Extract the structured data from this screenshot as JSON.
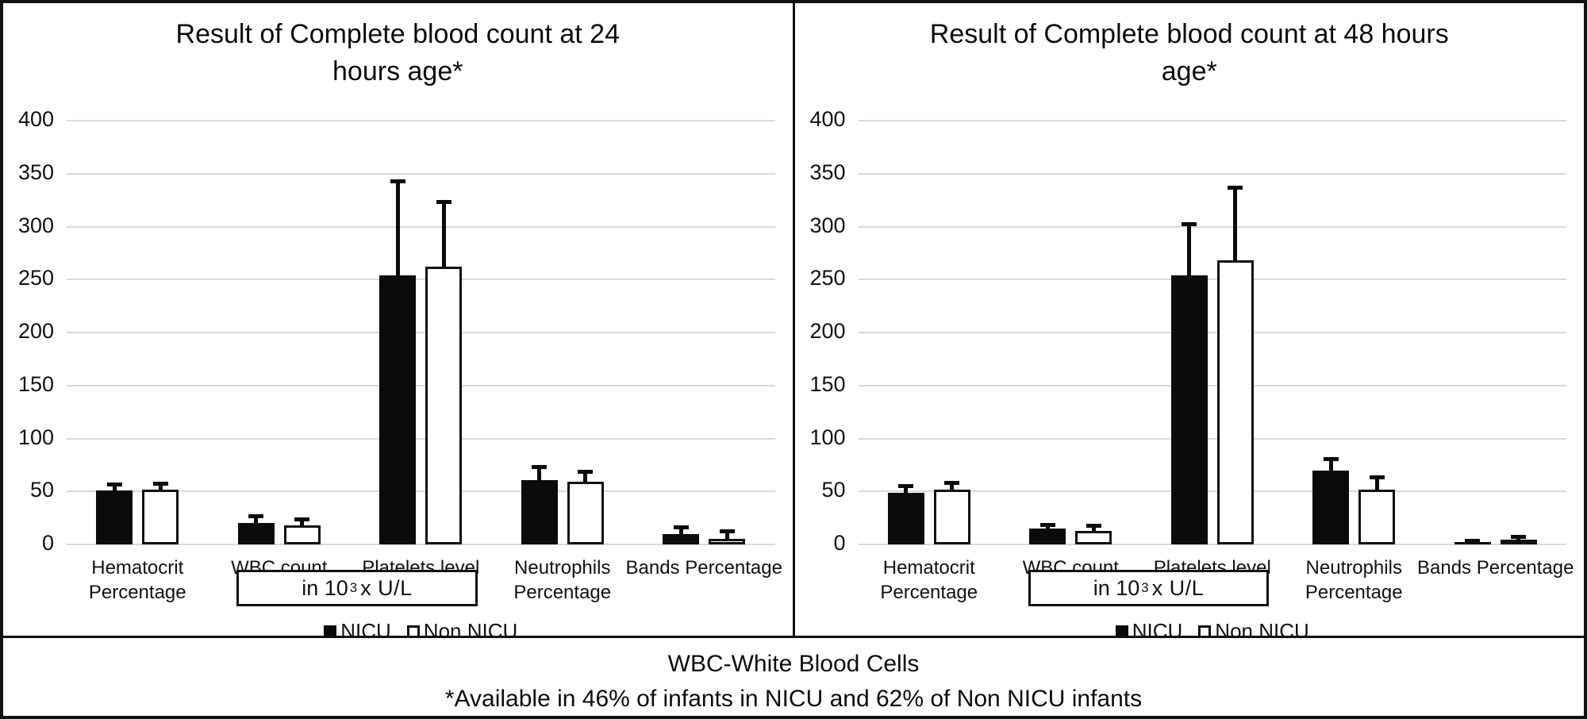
{
  "footer": {
    "line1": "WBC-White Blood Cells",
    "line2": "*Available in 46% of infants in NICU and 62% of Non NICU infants"
  },
  "colors": {
    "bar_nicu_fill": "#0b0b0b",
    "bar_non_nicu_fill": "#ffffff",
    "bar_border": "#111111",
    "gridline": "#d9d9d9",
    "frame_border": "#111111"
  },
  "unit_box": {
    "text_pre": "in 10",
    "text_sup": "3",
    "text_post": "x U/L"
  },
  "chart_data": [
    {
      "type": "bar",
      "title": "Result of Complete blood count at 24 hours age*",
      "title_lines": [
        "Result of Complete blood count at 24",
        "hours age*"
      ],
      "categories": [
        "Hematocrit\nPercentage",
        "WBC count",
        "Platelets level",
        "Neutrophils\nPercentage",
        "Bands Percentage"
      ],
      "series": [
        {
          "name": "NICU",
          "style": "filled",
          "values": [
            51,
            20,
            254,
            61,
            10
          ],
          "error_top": [
            56,
            26,
            342,
            73,
            16
          ]
        },
        {
          "name": "Non NICU",
          "style": "hollow",
          "values": [
            52,
            18,
            262,
            59,
            5
          ],
          "error_top": [
            57,
            23,
            323,
            68,
            12
          ]
        }
      ],
      "ylim": [
        0,
        400
      ],
      "ytick_step": 50,
      "grid": true,
      "legend_position": "bottom",
      "annotation": "in 10³x U/L (box under WBC count and Platelets level)"
    },
    {
      "type": "bar",
      "title": "Result of Complete blood count at 48 hours age*",
      "title_lines": [
        "Result of Complete blood count at 48 hours",
        "age*"
      ],
      "categories": [
        "Hematocrit\nPercentage",
        "WBC count",
        "Platelets level",
        "Neutrophils\nPercentage",
        "Bands Percentage"
      ],
      "series": [
        {
          "name": "NICU",
          "style": "filled",
          "values": [
            49,
            15,
            254,
            70,
            2
          ],
          "error_top": [
            55,
            18,
            302,
            80,
            3
          ]
        },
        {
          "name": "Non NICU",
          "style": "hollow",
          "values": [
            52,
            13,
            268,
            52,
            4
          ],
          "error_top": [
            58,
            17,
            336,
            63,
            7
          ]
        }
      ],
      "ylim": [
        0,
        400
      ],
      "ytick_step": 50,
      "grid": true,
      "legend_position": "bottom",
      "annotation": "in 10³x U/L (box under WBC count and Platelets level)"
    }
  ]
}
